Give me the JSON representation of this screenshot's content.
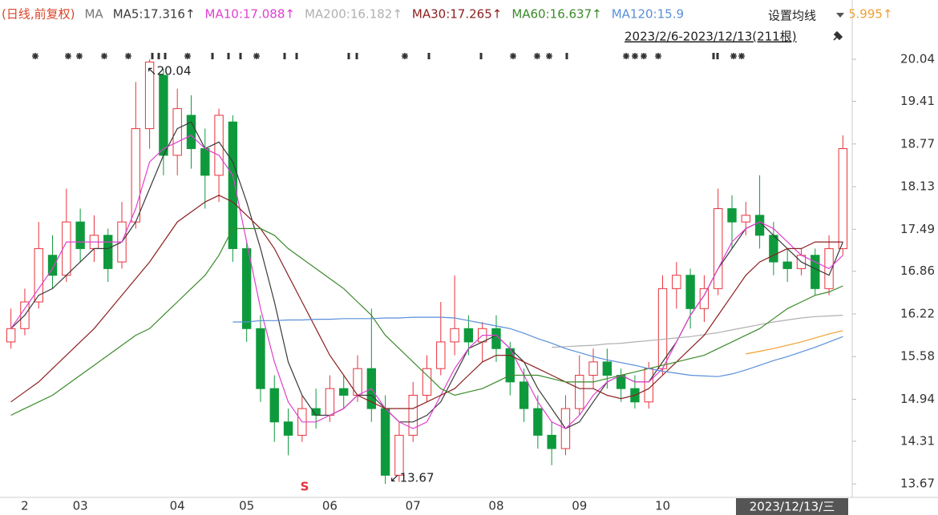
{
  "chart_data": {
    "type": "candlestick",
    "legend_prefix": "(日线,前复权)",
    "legend_label": "MA",
    "range_label": "2023/2/6-2023/12/13(211根)",
    "settings_label": "设置均线",
    "date_box": "2023/12/13/三",
    "high_label": "↖20.04",
    "low_label": "↙13.67",
    "signal_label": "S",
    "categories": [
      null,
      "2",
      null,
      null,
      null,
      "03",
      null,
      null,
      null,
      null,
      null,
      null,
      "04",
      null,
      null,
      null,
      null,
      "05",
      null,
      null,
      null,
      null,
      null,
      "06",
      null,
      null,
      null,
      null,
      null,
      "07",
      null,
      null,
      null,
      null,
      null,
      "08",
      null,
      null,
      null,
      null,
      null,
      "09",
      null,
      null,
      null,
      null,
      null,
      "10",
      null,
      null,
      null,
      null,
      null,
      null,
      null,
      null,
      null,
      null,
      null,
      null,
      null
    ],
    "candles": {
      "up_color": "#e8323c",
      "down_color": "#0e9a3c",
      "open": [
        15.8,
        16.0,
        16.4,
        17.1,
        16.8,
        17.6,
        17.2,
        17.4,
        17.0,
        17.6,
        19.0,
        19.8,
        18.6,
        19.2,
        18.7,
        18.3,
        19.1,
        17.2,
        16.0,
        15.1,
        14.6,
        14.4,
        14.8,
        14.7,
        15.1,
        15.0,
        15.4,
        14.8,
        13.8,
        14.4,
        15.0,
        15.4,
        15.8,
        16.0,
        15.8,
        16.0,
        15.7,
        15.2,
        14.8,
        14.4,
        14.2,
        14.8,
        15.3,
        15.5,
        15.3,
        15.1,
        14.9,
        15.4,
        16.6,
        16.8,
        16.3,
        16.6,
        17.8,
        17.6,
        17.7,
        17.4,
        17.0,
        16.9,
        17.1,
        16.6,
        17.2
      ],
      "high": [
        16.3,
        16.6,
        17.6,
        17.4,
        18.1,
        17.8,
        17.7,
        17.5,
        17.9,
        19.7,
        20.04,
        19.9,
        19.6,
        19.5,
        19.0,
        19.3,
        19.2,
        17.3,
        16.2,
        15.3,
        14.8,
        15.0,
        15.1,
        15.3,
        15.3,
        15.6,
        16.3,
        15.0,
        14.6,
        15.2,
        15.6,
        16.4,
        16.8,
        16.2,
        16.1,
        16.2,
        15.8,
        15.4,
        15.0,
        14.6,
        15.0,
        15.6,
        15.7,
        15.7,
        15.4,
        15.3,
        15.5,
        16.8,
        17.0,
        16.9,
        16.8,
        18.1,
        18.0,
        17.9,
        18.3,
        17.6,
        17.2,
        17.2,
        17.2,
        17.4,
        18.9
      ],
      "low": [
        15.7,
        15.9,
        16.3,
        16.6,
        16.7,
        17.0,
        17.0,
        16.7,
        16.9,
        17.5,
        18.7,
        18.3,
        18.3,
        18.4,
        17.8,
        17.9,
        17.0,
        15.8,
        14.9,
        14.3,
        14.1,
        14.3,
        14.5,
        14.6,
        14.8,
        14.9,
        14.6,
        13.67,
        13.7,
        14.3,
        14.9,
        15.3,
        15.6,
        15.6,
        15.5,
        15.5,
        15.0,
        14.6,
        14.2,
        13.95,
        14.1,
        14.7,
        15.1,
        15.1,
        14.9,
        14.8,
        14.8,
        15.3,
        16.3,
        16.0,
        16.1,
        16.5,
        17.2,
        17.4,
        17.2,
        16.8,
        16.7,
        16.8,
        16.5,
        16.5,
        17.1
      ],
      "close": [
        16.0,
        16.4,
        17.2,
        16.8,
        17.6,
        17.2,
        17.4,
        16.9,
        17.6,
        19.0,
        20.0,
        18.6,
        19.3,
        18.7,
        18.3,
        19.2,
        17.2,
        16.0,
        15.1,
        14.6,
        14.4,
        14.8,
        14.7,
        15.1,
        15.0,
        15.4,
        14.8,
        13.8,
        14.4,
        15.0,
        15.4,
        15.8,
        16.0,
        15.8,
        16.0,
        15.7,
        15.2,
        14.8,
        14.4,
        14.2,
        14.8,
        15.3,
        15.5,
        15.3,
        15.1,
        14.9,
        15.4,
        16.6,
        16.8,
        16.3,
        16.6,
        17.8,
        17.6,
        17.7,
        17.4,
        17.0,
        16.9,
        17.1,
        16.6,
        17.2,
        18.7
      ]
    },
    "series": [
      {
        "name": "MA5:17.316↑",
        "color": "#3a3a3a",
        "values": [
          16.0,
          16.2,
          16.5,
          16.6,
          16.8,
          17.0,
          17.2,
          17.2,
          17.3,
          17.6,
          18.1,
          18.6,
          19.0,
          19.1,
          18.7,
          18.8,
          18.5,
          17.9,
          17.2,
          16.4,
          15.5,
          15.0,
          14.7,
          14.7,
          14.8,
          15.0,
          15.0,
          14.8,
          14.6,
          14.6,
          14.7,
          14.9,
          15.3,
          15.7,
          15.8,
          15.9,
          15.7,
          15.5,
          15.1,
          14.8,
          14.5,
          14.6,
          14.9,
          15.2,
          15.3,
          15.2,
          15.2,
          15.5,
          15.8,
          16.2,
          16.5,
          16.9,
          17.2,
          17.5,
          17.6,
          17.4,
          17.2,
          17.0,
          16.9,
          16.8,
          17.3
        ]
      },
      {
        "name": "MA10:17.088↑",
        "color": "#e040d0",
        "values": [
          16.0,
          16.3,
          16.6,
          16.9,
          17.3,
          17.3,
          17.3,
          17.3,
          17.3,
          17.8,
          18.5,
          18.7,
          18.8,
          18.9,
          18.7,
          18.6,
          18.3,
          17.3,
          16.3,
          15.5,
          14.9,
          14.6,
          14.6,
          14.7,
          14.8,
          15.0,
          15.1,
          14.8,
          14.6,
          14.5,
          14.6,
          15.0,
          15.4,
          15.7,
          15.9,
          15.9,
          15.7,
          15.3,
          14.9,
          14.6,
          14.5,
          14.7,
          15.0,
          15.2,
          15.3,
          15.2,
          15.2,
          15.4,
          15.8,
          16.2,
          16.5,
          16.9,
          17.3,
          17.5,
          17.6,
          17.5,
          17.3,
          17.1,
          17.0,
          16.9,
          17.1
        ]
      },
      {
        "name": "MA200:16.182↑",
        "color": "#b0b0b0",
        "values": [
          null,
          null,
          null,
          null,
          null,
          null,
          null,
          null,
          null,
          null,
          null,
          null,
          null,
          null,
          null,
          null,
          null,
          null,
          null,
          null,
          null,
          null,
          null,
          null,
          null,
          null,
          null,
          null,
          null,
          null,
          null,
          null,
          null,
          null,
          null,
          null,
          null,
          null,
          null,
          15.72,
          15.73,
          15.74,
          15.75,
          15.77,
          15.78,
          15.8,
          15.82,
          15.84,
          15.86,
          15.88,
          15.91,
          15.94,
          15.98,
          16.02,
          16.06,
          16.1,
          16.13,
          16.16,
          16.18,
          16.19,
          16.2
        ]
      },
      {
        "name": "MA30:17.265↑",
        "color": "#8b2020",
        "values": [
          14.9,
          15.05,
          15.2,
          15.4,
          15.6,
          15.8,
          16.0,
          16.25,
          16.5,
          16.75,
          17.0,
          17.3,
          17.6,
          17.75,
          17.9,
          18.0,
          17.9,
          17.7,
          17.5,
          17.2,
          16.8,
          16.4,
          16.0,
          15.6,
          15.3,
          15.0,
          14.9,
          14.8,
          14.8,
          14.8,
          14.9,
          15.0,
          15.1,
          15.3,
          15.5,
          15.6,
          15.6,
          15.5,
          15.4,
          15.3,
          15.2,
          15.1,
          15.1,
          15.0,
          14.95,
          15.0,
          15.1,
          15.3,
          15.5,
          15.7,
          15.9,
          16.2,
          16.5,
          16.8,
          17.0,
          17.1,
          17.2,
          17.2,
          17.3,
          17.3,
          17.3
        ]
      },
      {
        "name": "MA60:16.637↑",
        "color": "#3a8a2a",
        "values": [
          14.7,
          14.8,
          14.9,
          15.0,
          15.15,
          15.3,
          15.45,
          15.6,
          15.75,
          15.9,
          16.0,
          16.2,
          16.4,
          16.6,
          16.8,
          17.1,
          17.5,
          17.5,
          17.5,
          17.4,
          17.2,
          17.05,
          16.9,
          16.75,
          16.6,
          16.4,
          16.2,
          15.9,
          15.7,
          15.5,
          15.3,
          15.1,
          15.0,
          15.05,
          15.1,
          15.2,
          15.3,
          15.3,
          15.3,
          15.25,
          15.2,
          15.2,
          15.2,
          15.25,
          15.3,
          15.35,
          15.4,
          15.45,
          15.5,
          15.55,
          15.6,
          15.7,
          15.8,
          15.9,
          16.0,
          16.15,
          16.3,
          16.4,
          16.5,
          16.55,
          16.64
        ]
      },
      {
        "name": "MA120:15.9",
        "color": "#5a8fd8",
        "values": [
          null,
          null,
          null,
          null,
          null,
          null,
          null,
          null,
          null,
          null,
          null,
          null,
          null,
          null,
          null,
          null,
          16.1,
          16.1,
          16.12,
          16.12,
          16.13,
          16.13,
          16.14,
          16.14,
          16.15,
          16.15,
          16.15,
          16.16,
          16.16,
          16.17,
          16.17,
          16.17,
          16.16,
          16.12,
          16.08,
          16.04,
          16.0,
          15.93,
          15.85,
          15.78,
          15.7,
          15.64,
          15.58,
          15.53,
          15.49,
          15.45,
          15.4,
          15.36,
          15.33,
          15.3,
          15.29,
          15.28,
          15.32,
          15.38,
          15.45,
          15.52,
          15.58,
          15.65,
          15.72,
          15.8,
          15.88
        ]
      },
      {
        "name": "5.995↑",
        "color": "#f0a030",
        "values": [
          null,
          null,
          null,
          null,
          null,
          null,
          null,
          null,
          null,
          null,
          null,
          null,
          null,
          null,
          null,
          null,
          null,
          null,
          null,
          null,
          null,
          null,
          null,
          null,
          null,
          null,
          null,
          null,
          null,
          null,
          null,
          null,
          null,
          null,
          null,
          null,
          null,
          null,
          null,
          null,
          null,
          null,
          null,
          null,
          null,
          null,
          null,
          null,
          null,
          null,
          null,
          null,
          null,
          15.62,
          15.66,
          15.7,
          15.75,
          15.8,
          15.86,
          15.92,
          15.97
        ]
      }
    ],
    "ylim": [
      13.48,
      20.93
    ],
    "yticks": [
      13.67,
      14.31,
      14.94,
      15.58,
      16.22,
      16.86,
      17.49,
      18.13,
      18.77,
      19.41,
      20.04
    ],
    "grid": false
  }
}
